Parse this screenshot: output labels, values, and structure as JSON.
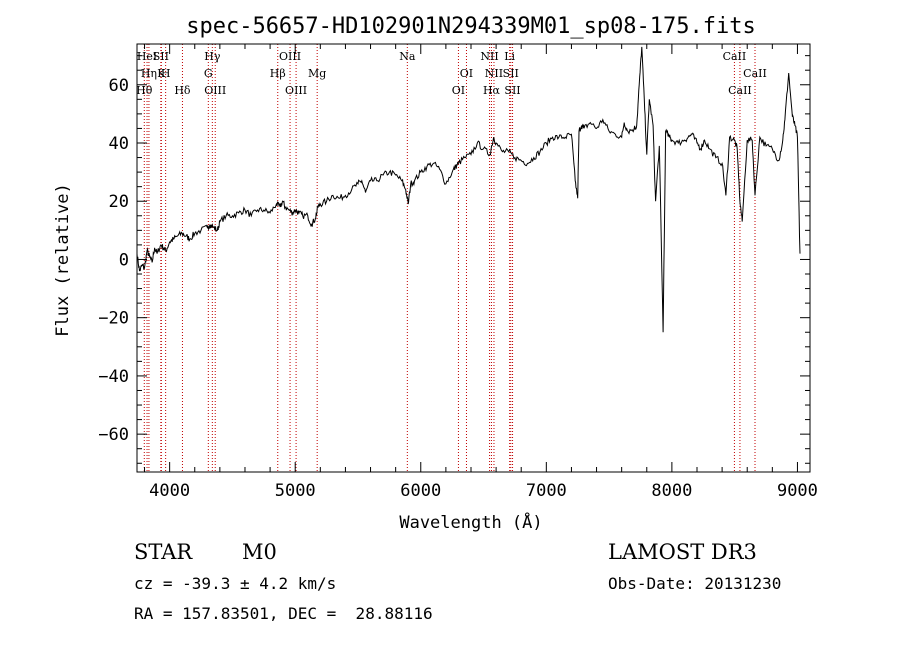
{
  "chart_data": {
    "type": "line",
    "title": "spec-56657-HD102901N294339M01_sp08-175.fits",
    "xlabel": "Wavelength (Å)",
    "ylabel": "Flux (relative)",
    "xlim": [
      3740,
      9100
    ],
    "ylim": [
      -73,
      74
    ],
    "xticks": [
      4000,
      5000,
      6000,
      7000,
      8000,
      9000
    ],
    "yticks": [
      -60,
      -40,
      -20,
      0,
      20,
      40,
      60
    ],
    "grid": false,
    "line_color": "#000000",
    "marker_color": "#c00000",
    "spectral_lines": [
      {
        "label": "HeI",
        "wavelength": 3820,
        "row": 0
      },
      {
        "label": "SII",
        "wavelength": 3930,
        "row": 0
      },
      {
        "label": "Hη",
        "wavelength": 3835,
        "row": 1
      },
      {
        "label": "H",
        "wavelength": 3968,
        "row": 1
      },
      {
        "label": "K",
        "wavelength": 3934,
        "row": 1
      },
      {
        "label": "Hθ",
        "wavelength": 3798,
        "row": 2
      },
      {
        "label": "Hδ",
        "wavelength": 4102,
        "row": 2
      },
      {
        "label": "Hγ",
        "wavelength": 4340,
        "row": 0
      },
      {
        "label": "G",
        "wavelength": 4308,
        "row": 1
      },
      {
        "label": "OIII",
        "wavelength": 4363,
        "row": 2
      },
      {
        "label": "OIII",
        "wavelength": 4959,
        "row": 0
      },
      {
        "label": "Hβ",
        "wavelength": 4861,
        "row": 1
      },
      {
        "label": "OIII",
        "wavelength": 5007,
        "row": 2
      },
      {
        "label": "Mg",
        "wavelength": 5175,
        "row": 1
      },
      {
        "label": "Na",
        "wavelength": 5893,
        "row": 0
      },
      {
        "label": "OI",
        "wavelength": 6364,
        "row": 1
      },
      {
        "label": "OI",
        "wavelength": 6300,
        "row": 2
      },
      {
        "label": "NII",
        "wavelength": 6548,
        "row": 0
      },
      {
        "label": "Li",
        "wavelength": 6708,
        "row": 0
      },
      {
        "label": "NII",
        "wavelength": 6583,
        "row": 1
      },
      {
        "label": "SII",
        "wavelength": 6717,
        "row": 1
      },
      {
        "label": "Hα",
        "wavelength": 6563,
        "row": 2
      },
      {
        "label": "SII",
        "wavelength": 6731,
        "row": 2
      },
      {
        "label": "CaII",
        "wavelength": 8498,
        "row": 0
      },
      {
        "label": "CaII",
        "wavelength": 8662,
        "row": 1
      },
      {
        "label": "CaII",
        "wavelength": 8542,
        "row": 2
      }
    ],
    "series": [
      {
        "x": [
          3740,
          3760,
          3780,
          3800,
          3820,
          3840,
          3860,
          3880,
          3900,
          3930,
          3950,
          3970,
          4000,
          4030,
          4060,
          4100,
          4130,
          4160,
          4200,
          4250,
          4300,
          4320,
          4350,
          4380,
          4400,
          4450,
          4500,
          4550,
          4600,
          4650,
          4700,
          4750,
          4800,
          4850,
          4880,
          4900,
          4920,
          4950,
          4980,
          5000,
          5030,
          5060,
          5100,
          5130,
          5160,
          5180,
          5200,
          5250,
          5300,
          5350,
          5400,
          5450,
          5500,
          5530,
          5560,
          5600,
          5650,
          5700,
          5750,
          5800,
          5850,
          5880,
          5900,
          5920,
          5950,
          6000,
          6050,
          6100,
          6150,
          6200,
          6250,
          6280,
          6300,
          6350,
          6400,
          6450,
          6500,
          6550,
          6580,
          6600,
          6650,
          6700,
          6750,
          6800,
          6850,
          6900,
          6950,
          7000,
          7050,
          7100,
          7150,
          7200,
          7230,
          7250,
          7260,
          7280,
          7300,
          7350,
          7400,
          7450,
          7500,
          7550,
          7600,
          7620,
          7650,
          7700,
          7720,
          7740,
          7760,
          7780,
          7800,
          7820,
          7850,
          7870,
          7900,
          7930,
          7950,
          7980,
          8000,
          8050,
          8100,
          8130,
          8160,
          8200,
          8230,
          8260,
          8300,
          8350,
          8400,
          8430,
          8460,
          8498,
          8520,
          8542,
          8560,
          8600,
          8640,
          8662,
          8700,
          8750,
          8800,
          8850,
          8880,
          8900,
          8930,
          8960,
          8980,
          9000,
          9020
        ],
        "y": [
          2,
          -4,
          -2,
          -3,
          3,
          1,
          -1,
          4,
          2,
          5,
          4,
          3,
          6,
          7,
          8,
          9,
          8,
          7,
          9,
          10,
          11,
          12,
          11,
          10,
          13,
          15,
          15,
          16,
          17,
          15,
          17,
          17,
          16,
          19,
          18,
          20,
          18,
          17,
          16,
          17,
          16,
          15,
          15,
          12,
          14,
          18,
          19,
          20,
          22,
          21,
          22,
          24,
          26,
          27,
          23,
          27,
          27,
          29,
          30,
          29,
          27,
          24,
          19,
          26,
          27,
          30,
          32,
          33,
          31,
          26,
          30,
          32,
          33,
          35,
          36,
          40,
          38,
          36,
          42,
          40,
          37,
          37,
          35,
          34,
          33,
          35,
          37,
          40,
          42,
          42,
          42,
          43,
          27,
          21,
          44,
          46,
          45,
          47,
          45,
          48,
          44,
          43,
          42,
          47,
          44,
          45,
          46,
          60,
          73,
          55,
          36,
          55,
          46,
          20,
          39,
          -25,
          44,
          42,
          41,
          40,
          41,
          42,
          43,
          40,
          38,
          41,
          38,
          35,
          33,
          22,
          42,
          41,
          38,
          20,
          13,
          41,
          41,
          22,
          42,
          39,
          38,
          34,
          40,
          48,
          64,
          49,
          46,
          42,
          2
        ]
      }
    ]
  },
  "info": {
    "object_type": "STAR",
    "subclass": "M0",
    "survey": "LAMOST DR3",
    "cz": "cz = -39.3 ± 4.2 km/s",
    "obs_date": "Obs-Date: 20131230",
    "coords": "RA = 157.83501, DEC =  28.88116"
  }
}
